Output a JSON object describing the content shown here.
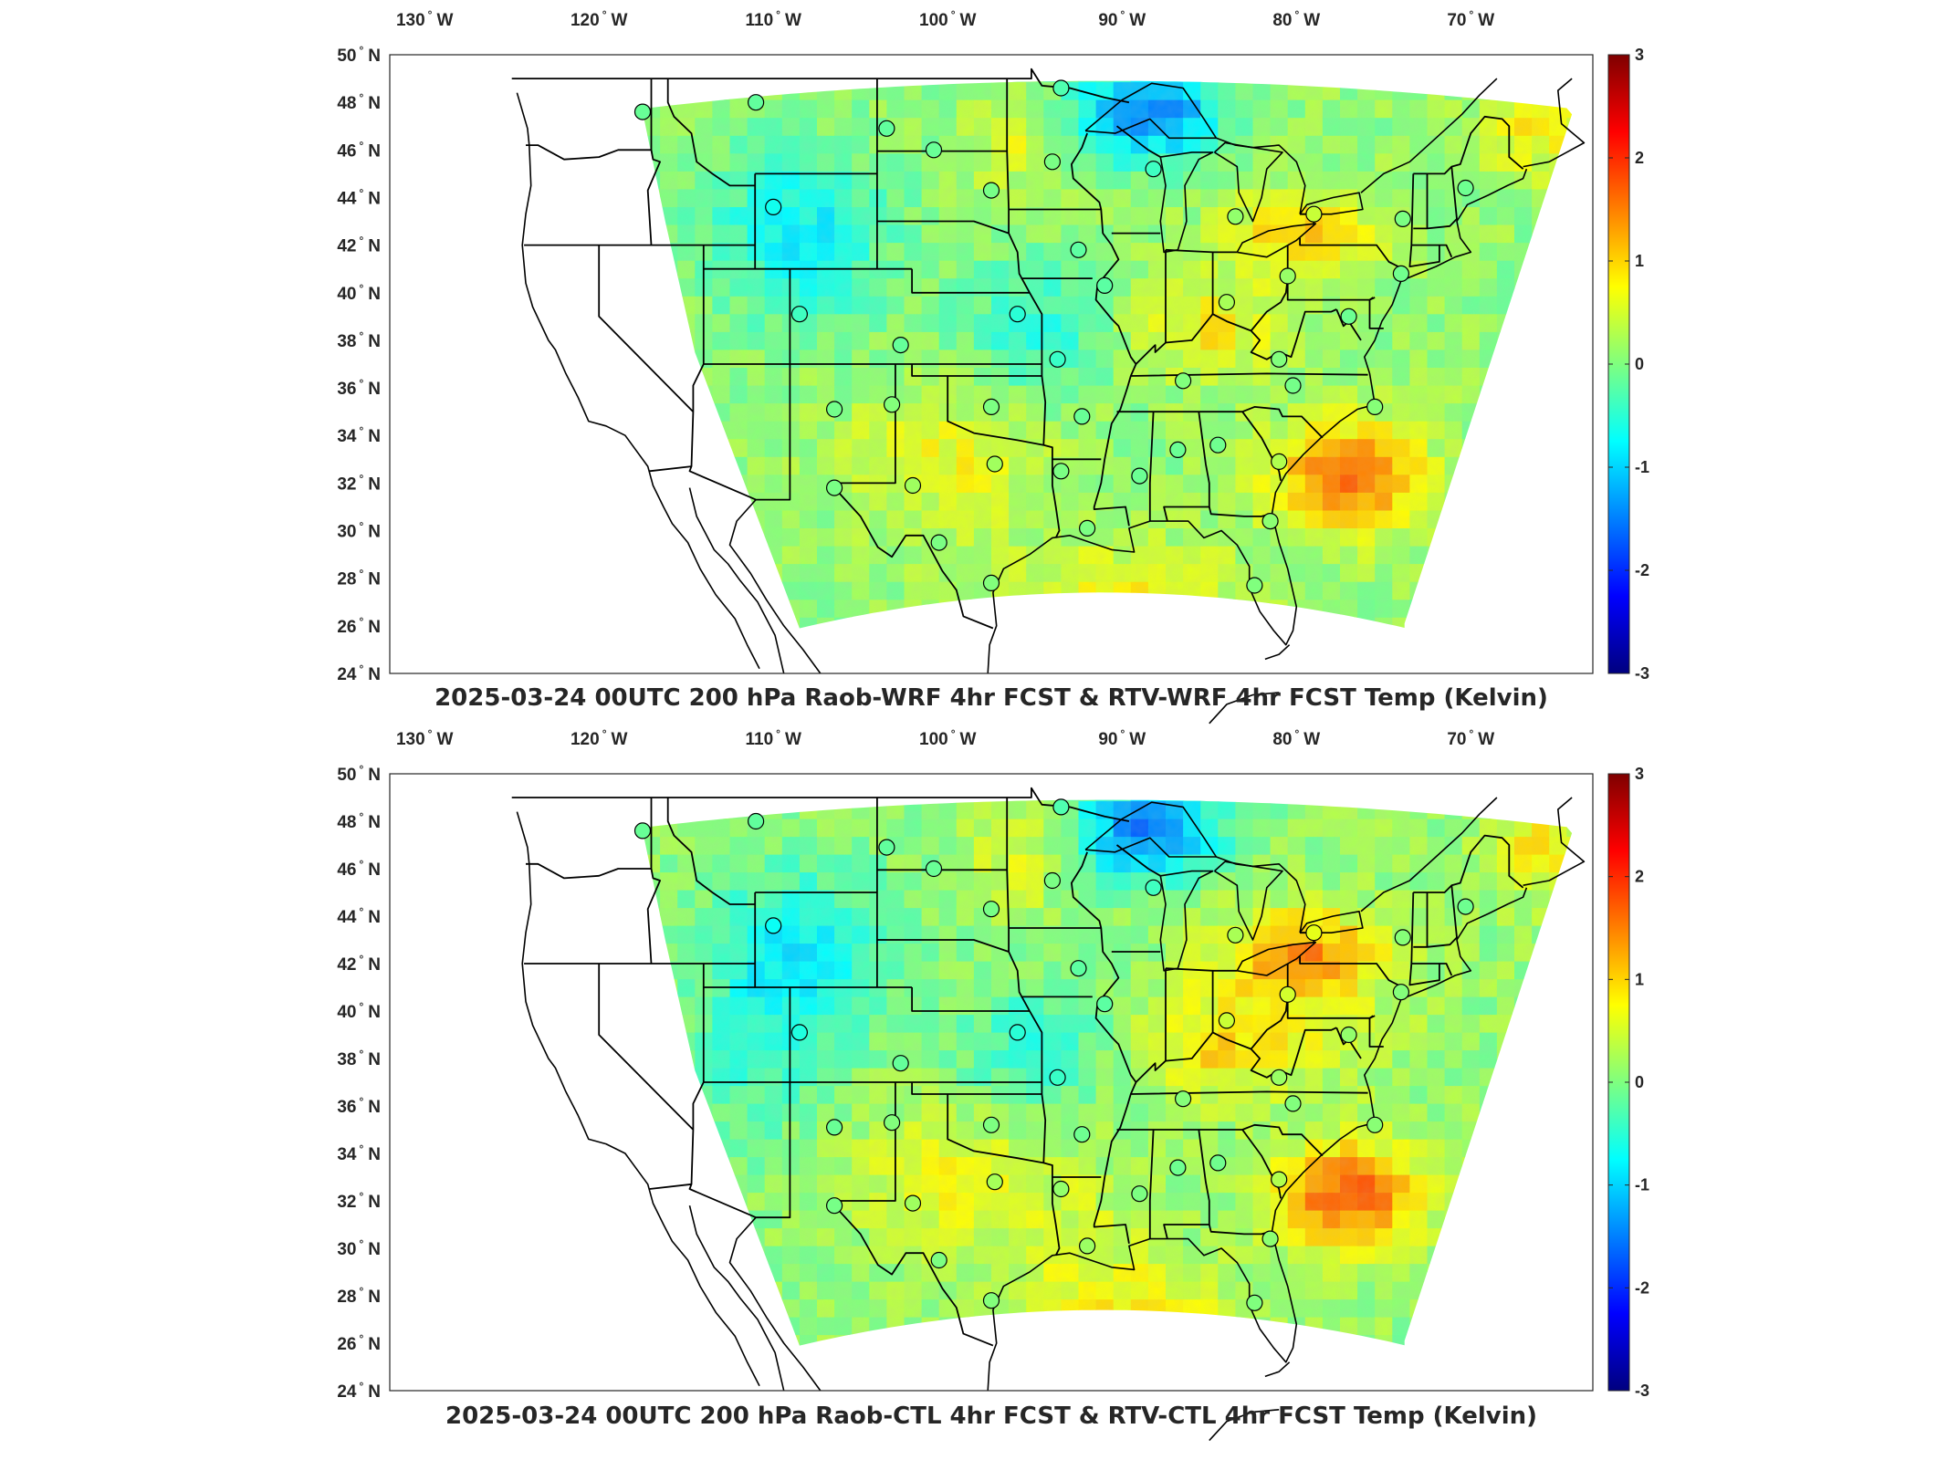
{
  "figure": {
    "panels": [
      {
        "title": "2025-03-24 00UTC 200 hPa Raob-WRF 4hr FCST & RTV-WRF 4hr FCST Temp (Kelvin)",
        "variant": "wrf"
      },
      {
        "title": "2025-03-24 00UTC 200 hPa Raob-CTL 4hr FCST & RTV-CTL 4hr FCST Temp (Kelvin)",
        "variant": "ctl"
      }
    ],
    "lon_ticks": [
      {
        "value": -130,
        "label": "130",
        "suffix": "W"
      },
      {
        "value": -120,
        "label": "120",
        "suffix": "W"
      },
      {
        "value": -110,
        "label": "110",
        "suffix": "W"
      },
      {
        "value": -100,
        "label": "100",
        "suffix": "W"
      },
      {
        "value": -90,
        "label": "90",
        "suffix": "W"
      },
      {
        "value": -80,
        "label": "80",
        "suffix": "W"
      },
      {
        "value": -70,
        "label": "70",
        "suffix": "W"
      }
    ],
    "lat_ticks": [
      {
        "value": 50,
        "label": "50",
        "suffix": "N"
      },
      {
        "value": 48,
        "label": "48",
        "suffix": "N"
      },
      {
        "value": 46,
        "label": "46",
        "suffix": "N"
      },
      {
        "value": 44,
        "label": "44",
        "suffix": "N"
      },
      {
        "value": 42,
        "label": "42",
        "suffix": "N"
      },
      {
        "value": 40,
        "label": "40",
        "suffix": "N"
      },
      {
        "value": 38,
        "label": "38",
        "suffix": "N"
      },
      {
        "value": 36,
        "label": "36",
        "suffix": "N"
      },
      {
        "value": 34,
        "label": "34",
        "suffix": "N"
      },
      {
        "value": 32,
        "label": "32",
        "suffix": "N"
      },
      {
        "value": 30,
        "label": "30",
        "suffix": "N"
      },
      {
        "value": 28,
        "label": "28",
        "suffix": "N"
      },
      {
        "value": 26,
        "label": "26",
        "suffix": "N"
      },
      {
        "value": 24,
        "label": "24",
        "suffix": "N"
      }
    ],
    "lon_range": [
      -132,
      -63
    ],
    "lat_range": [
      24,
      50
    ],
    "colorbar": {
      "ticks": [
        "3",
        "2",
        "1",
        "0",
        "-1",
        "-2",
        "-3"
      ],
      "range": [
        -3,
        3
      ],
      "colormap": "jet",
      "colors": [
        "#00007f",
        "#0000ff",
        "#00ffff",
        "#7fff7f",
        "#ffff00",
        "#ff0000",
        "#7f0000"
      ]
    },
    "station_marker": {
      "shape": "open-circle",
      "edge_color": "#000000"
    },
    "station_value_range_k": [
      -1.2,
      1.2
    ],
    "stations": [
      {
        "lon": -117.5,
        "lat": 47.6
      },
      {
        "lon": -111.0,
        "lat": 48.0
      },
      {
        "lon": -103.5,
        "lat": 46.9
      },
      {
        "lon": -100.8,
        "lat": 46.0
      },
      {
        "lon": -93.5,
        "lat": 48.6
      },
      {
        "lon": -94.0,
        "lat": 45.5
      },
      {
        "lon": -88.2,
        "lat": 45.2
      },
      {
        "lon": -83.5,
        "lat": 43.2
      },
      {
        "lon": -79.0,
        "lat": 43.3
      },
      {
        "lon": -73.9,
        "lat": 43.1
      },
      {
        "lon": -70.3,
        "lat": 44.4
      },
      {
        "lon": -110.0,
        "lat": 43.6
      },
      {
        "lon": -97.5,
        "lat": 44.3
      },
      {
        "lon": -92.5,
        "lat": 41.8
      },
      {
        "lon": -91.0,
        "lat": 40.3
      },
      {
        "lon": -84.0,
        "lat": 39.6
      },
      {
        "lon": -80.5,
        "lat": 40.7
      },
      {
        "lon": -77.0,
        "lat": 39.0
      },
      {
        "lon": -74.0,
        "lat": 40.8
      },
      {
        "lon": -108.5,
        "lat": 39.1
      },
      {
        "lon": -102.7,
        "lat": 37.8
      },
      {
        "lon": -96.0,
        "lat": 39.1
      },
      {
        "lon": -93.7,
        "lat": 37.2
      },
      {
        "lon": -86.5,
        "lat": 36.3
      },
      {
        "lon": -81.0,
        "lat": 37.2
      },
      {
        "lon": -80.2,
        "lat": 36.1
      },
      {
        "lon": -75.5,
        "lat": 35.2
      },
      {
        "lon": -106.5,
        "lat": 35.1
      },
      {
        "lon": -103.2,
        "lat": 35.3
      },
      {
        "lon": -97.5,
        "lat": 35.2
      },
      {
        "lon": -92.3,
        "lat": 34.8
      },
      {
        "lon": -89.0,
        "lat": 32.3
      },
      {
        "lon": -86.8,
        "lat": 33.4
      },
      {
        "lon": -84.5,
        "lat": 33.6
      },
      {
        "lon": -81.0,
        "lat": 32.9
      },
      {
        "lon": -106.5,
        "lat": 31.8
      },
      {
        "lon": -102.0,
        "lat": 31.9
      },
      {
        "lon": -97.3,
        "lat": 32.8
      },
      {
        "lon": -93.5,
        "lat": 32.5
      },
      {
        "lon": -92.0,
        "lat": 30.1
      },
      {
        "lon": -81.5,
        "lat": 30.4
      },
      {
        "lon": -100.5,
        "lat": 29.5
      },
      {
        "lon": -97.5,
        "lat": 27.8
      },
      {
        "lon": -82.4,
        "lat": 27.7
      }
    ]
  }
}
